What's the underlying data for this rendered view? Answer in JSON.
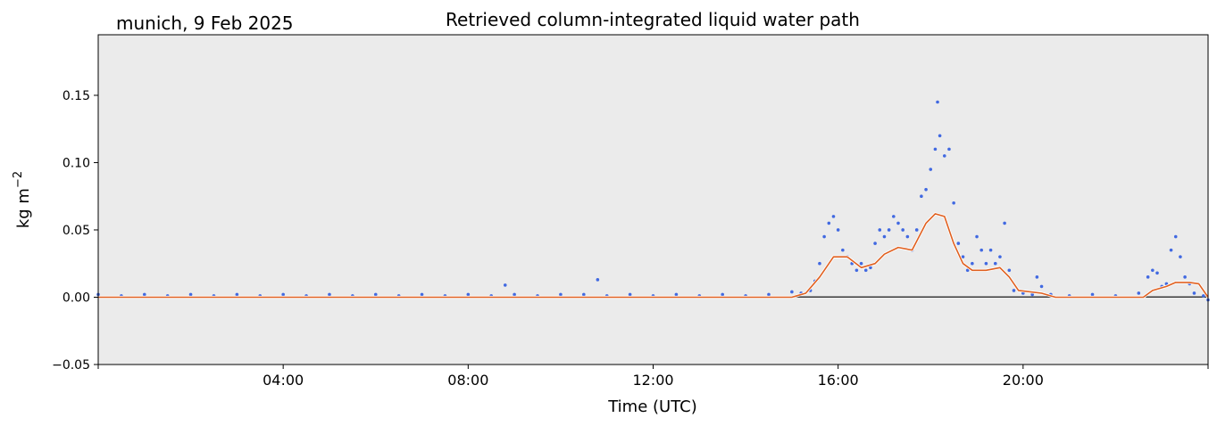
{
  "chart_data": {
    "type": "scatter",
    "title": "Retrieved column-integrated liquid water path",
    "location_date": "munich, 9 Feb 2025",
    "xlabel": "Time (UTC)",
    "ylabel_base": "kg m",
    "ylabel_exp": "−2",
    "xlim": [
      0,
      24
    ],
    "ylim": [
      -0.05,
      0.195
    ],
    "x_ticks": [
      {
        "value": 4,
        "label": "04:00"
      },
      {
        "value": 8,
        "label": "08:00"
      },
      {
        "value": 12,
        "label": "12:00"
      },
      {
        "value": 16,
        "label": "16:00"
      },
      {
        "value": 20,
        "label": "20:00"
      }
    ],
    "y_ticks": [
      {
        "value": -0.05,
        "label": "−0.05"
      },
      {
        "value": 0.0,
        "label": "0.00"
      },
      {
        "value": 0.05,
        "label": "0.05"
      },
      {
        "value": 0.1,
        "label": "0.10"
      },
      {
        "value": 0.15,
        "label": "0.15"
      }
    ],
    "grid": false,
    "background_color": "#ebebeb",
    "zero_line_color": "#000000",
    "series": [
      {
        "kind": "scatter",
        "color": "#4169e1",
        "points": [
          [
            0.0,
            0.002
          ],
          [
            0.5,
            0.001
          ],
          [
            1.0,
            0.002
          ],
          [
            1.5,
            0.001
          ],
          [
            2.0,
            0.002
          ],
          [
            2.5,
            0.001
          ],
          [
            3.0,
            0.002
          ],
          [
            3.5,
            0.001
          ],
          [
            4.0,
            0.002
          ],
          [
            4.5,
            0.001
          ],
          [
            5.0,
            0.002
          ],
          [
            5.5,
            0.001
          ],
          [
            6.0,
            0.002
          ],
          [
            6.5,
            0.001
          ],
          [
            7.0,
            0.002
          ],
          [
            7.5,
            0.001
          ],
          [
            8.0,
            0.002
          ],
          [
            8.5,
            0.001
          ],
          [
            8.8,
            0.009
          ],
          [
            9.0,
            0.002
          ],
          [
            9.5,
            0.001
          ],
          [
            10.0,
            0.002
          ],
          [
            10.5,
            0.002
          ],
          [
            10.8,
            0.013
          ],
          [
            11.0,
            0.001
          ],
          [
            11.5,
            0.002
          ],
          [
            12.0,
            0.001
          ],
          [
            12.5,
            0.002
          ],
          [
            13.0,
            0.001
          ],
          [
            13.5,
            0.002
          ],
          [
            14.0,
            0.001
          ],
          [
            14.5,
            0.002
          ],
          [
            15.0,
            0.004
          ],
          [
            15.2,
            0.003
          ],
          [
            15.4,
            0.005
          ],
          [
            15.5,
            0.012
          ],
          [
            15.6,
            0.025
          ],
          [
            15.7,
            0.045
          ],
          [
            15.8,
            0.055
          ],
          [
            15.9,
            0.06
          ],
          [
            16.0,
            0.05
          ],
          [
            16.1,
            0.035
          ],
          [
            16.2,
            0.03
          ],
          [
            16.3,
            0.025
          ],
          [
            16.4,
            0.02
          ],
          [
            16.5,
            0.025
          ],
          [
            16.6,
            0.02
          ],
          [
            16.7,
            0.022
          ],
          [
            16.8,
            0.04
          ],
          [
            16.9,
            0.05
          ],
          [
            17.0,
            0.045
          ],
          [
            17.1,
            0.05
          ],
          [
            17.2,
            0.06
          ],
          [
            17.3,
            0.055
          ],
          [
            17.4,
            0.05
          ],
          [
            17.5,
            0.045
          ],
          [
            17.6,
            0.035
          ],
          [
            17.7,
            0.05
          ],
          [
            17.8,
            0.075
          ],
          [
            17.9,
            0.08
          ],
          [
            18.0,
            0.095
          ],
          [
            18.1,
            0.11
          ],
          [
            18.15,
            0.145
          ],
          [
            18.2,
            0.12
          ],
          [
            18.3,
            0.105
          ],
          [
            18.4,
            0.11
          ],
          [
            18.5,
            0.07
          ],
          [
            18.6,
            0.04
          ],
          [
            18.7,
            0.03
          ],
          [
            18.8,
            0.02
          ],
          [
            18.9,
            0.025
          ],
          [
            19.0,
            0.045
          ],
          [
            19.1,
            0.035
          ],
          [
            19.2,
            0.025
          ],
          [
            19.3,
            0.035
          ],
          [
            19.4,
            0.025
          ],
          [
            19.5,
            0.03
          ],
          [
            19.6,
            0.055
          ],
          [
            19.7,
            0.02
          ],
          [
            19.8,
            0.005
          ],
          [
            20.0,
            0.003
          ],
          [
            20.2,
            0.002
          ],
          [
            20.3,
            0.015
          ],
          [
            20.4,
            0.008
          ],
          [
            20.6,
            0.002
          ],
          [
            21.0,
            0.001
          ],
          [
            21.5,
            0.002
          ],
          [
            22.0,
            0.001
          ],
          [
            22.5,
            0.003
          ],
          [
            22.7,
            0.015
          ],
          [
            22.8,
            0.02
          ],
          [
            22.9,
            0.018
          ],
          [
            23.0,
            0.008
          ],
          [
            23.1,
            0.01
          ],
          [
            23.2,
            0.035
          ],
          [
            23.3,
            0.045
          ],
          [
            23.4,
            0.03
          ],
          [
            23.5,
            0.015
          ],
          [
            23.6,
            0.01
          ],
          [
            23.7,
            0.003
          ],
          [
            23.9,
            0.001
          ],
          [
            24.0,
            -0.002
          ]
        ]
      },
      {
        "kind": "line",
        "color": "#e06020",
        "edge_color": "#ffffff",
        "points": [
          [
            0.0,
            0.0
          ],
          [
            15.0,
            0.0
          ],
          [
            15.3,
            0.003
          ],
          [
            15.6,
            0.015
          ],
          [
            15.9,
            0.03
          ],
          [
            16.2,
            0.03
          ],
          [
            16.5,
            0.022
          ],
          [
            16.8,
            0.025
          ],
          [
            17.0,
            0.032
          ],
          [
            17.3,
            0.037
          ],
          [
            17.6,
            0.035
          ],
          [
            17.9,
            0.055
          ],
          [
            18.1,
            0.062
          ],
          [
            18.3,
            0.06
          ],
          [
            18.5,
            0.04
          ],
          [
            18.7,
            0.025
          ],
          [
            18.9,
            0.02
          ],
          [
            19.2,
            0.02
          ],
          [
            19.5,
            0.022
          ],
          [
            19.7,
            0.015
          ],
          [
            19.9,
            0.005
          ],
          [
            20.4,
            0.003
          ],
          [
            20.7,
            0.0
          ],
          [
            22.6,
            0.0
          ],
          [
            22.8,
            0.005
          ],
          [
            23.1,
            0.008
          ],
          [
            23.3,
            0.011
          ],
          [
            23.6,
            0.011
          ],
          [
            23.8,
            0.01
          ],
          [
            24.0,
            0.0
          ]
        ]
      }
    ]
  }
}
